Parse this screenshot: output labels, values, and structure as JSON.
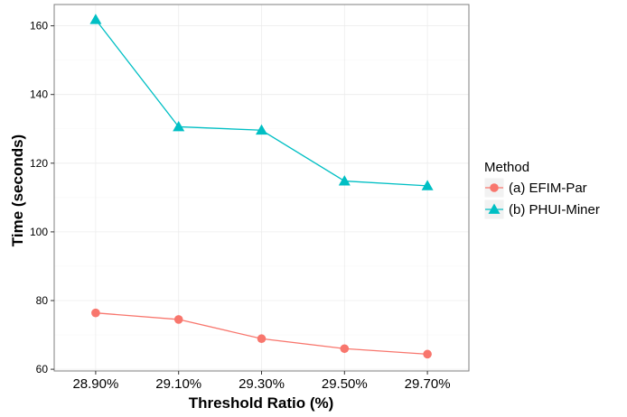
{
  "chart_data": {
    "type": "line",
    "title": "",
    "xlabel": "Threshold Ratio (%)",
    "ylabel": "Time (seconds)",
    "categories": [
      "28.90%",
      "29.10%",
      "29.30%",
      "29.50%",
      "29.70%"
    ],
    "ylim": [
      59.5,
      166.2
    ],
    "yticks": [
      60,
      80,
      100,
      120,
      140,
      160
    ],
    "grid": true,
    "legend": {
      "title": "Method",
      "placement": "right"
    },
    "series": [
      {
        "name": "(a) EFIM-Par",
        "values": [
          76.4,
          74.5,
          68.9,
          66.0,
          64.4
        ],
        "color": "#F8766D",
        "marker": "circle"
      },
      {
        "name": "(b) PHUI-Miner",
        "values": [
          161.8,
          130.6,
          129.6,
          114.8,
          113.4
        ],
        "color": "#00BFC4",
        "marker": "triangle"
      }
    ]
  }
}
